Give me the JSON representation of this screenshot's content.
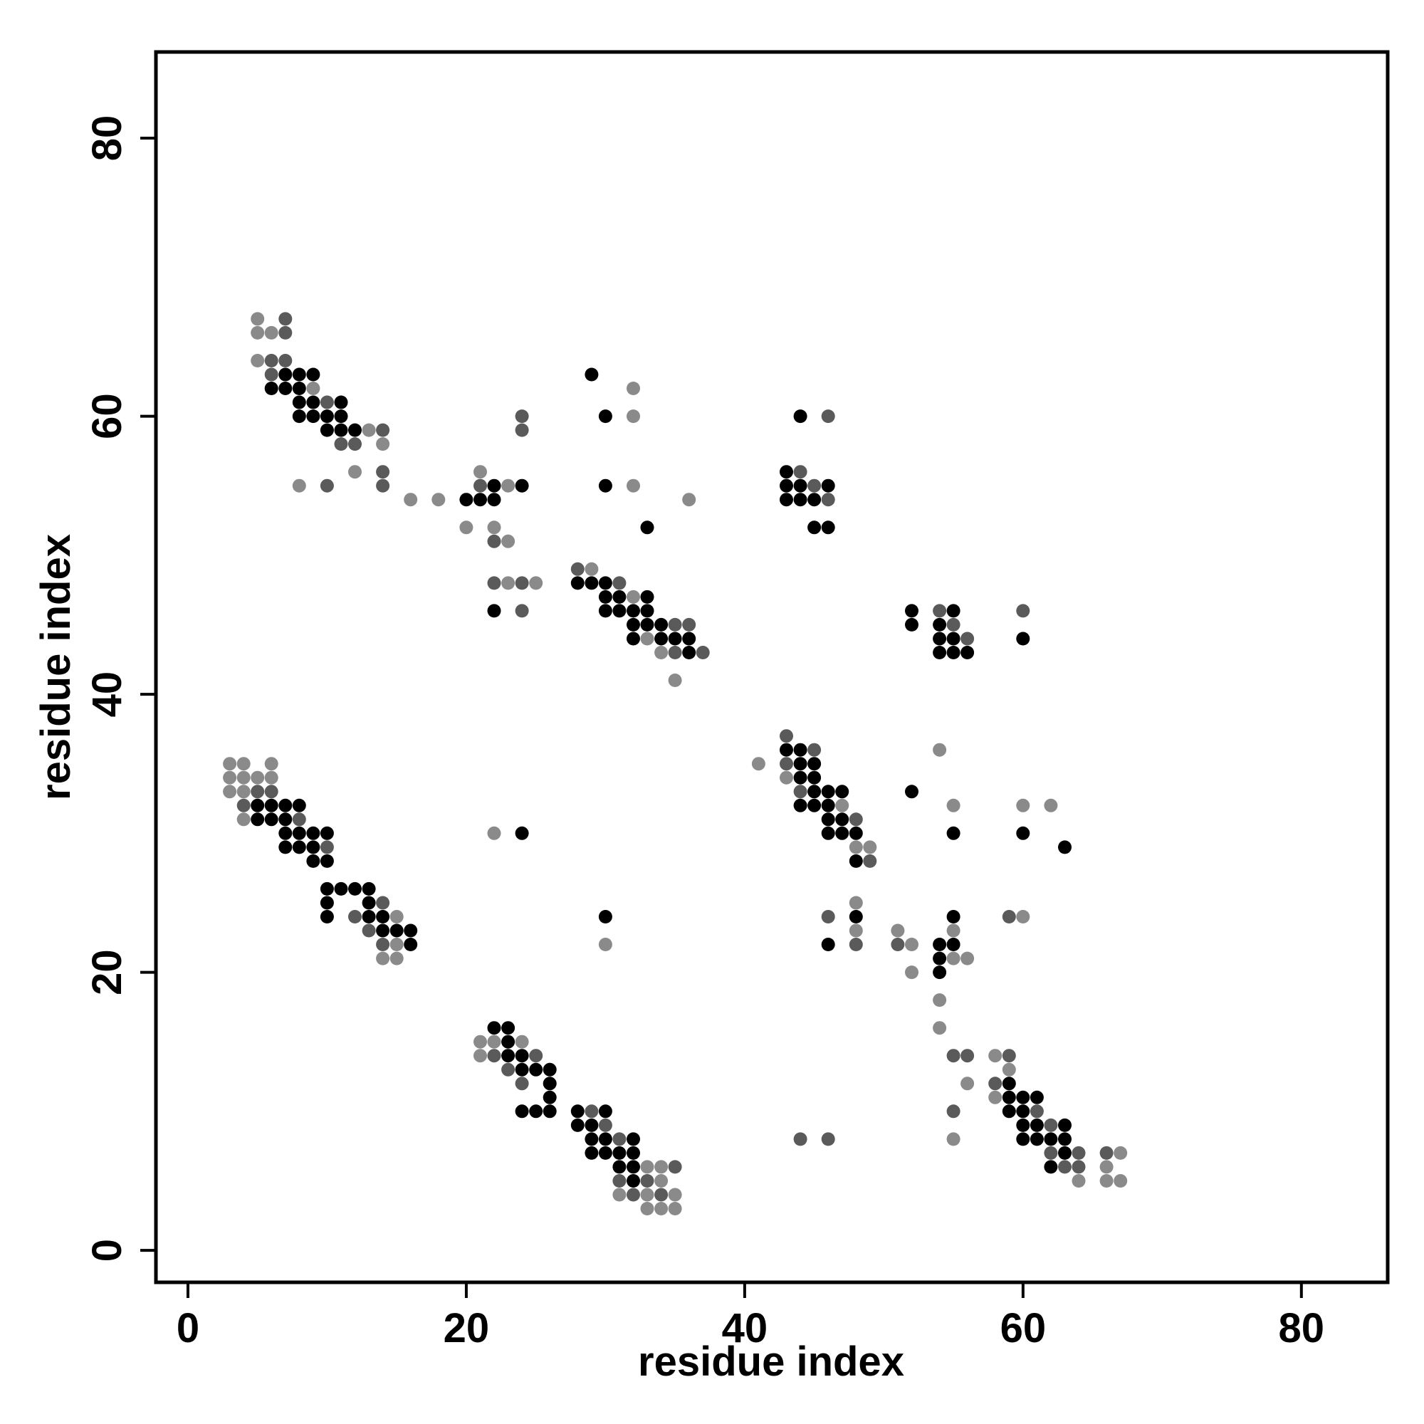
{
  "chart_data": {
    "type": "scatter",
    "title": "",
    "xlabel": "residue index",
    "ylabel": "residue index",
    "xlim": [
      -2.3,
      86.2
    ],
    "ylim": [
      -2.3,
      86.2
    ],
    "x_ticks": [
      0,
      20,
      40,
      60,
      80
    ],
    "y_ticks": [
      0,
      20,
      40,
      60,
      80
    ],
    "grid": false,
    "legend": "none",
    "colors": {
      "black": "#000000",
      "dark": "#3c3c3c",
      "mid": "#5a5a5a",
      "light": "#8a8a8a"
    },
    "points": [
      [
        5,
        67,
        "light"
      ],
      [
        7,
        67,
        "mid"
      ],
      [
        5,
        66,
        "light"
      ],
      [
        6,
        66,
        "light"
      ],
      [
        7,
        66,
        "mid"
      ],
      [
        5,
        64,
        "light"
      ],
      [
        6,
        64,
        "mid"
      ],
      [
        7,
        64,
        "mid"
      ],
      [
        6,
        63,
        "mid"
      ],
      [
        7,
        63,
        "black"
      ],
      [
        8,
        63,
        "black"
      ],
      [
        9,
        63,
        "black"
      ],
      [
        6,
        62,
        "black"
      ],
      [
        7,
        62,
        "black"
      ],
      [
        8,
        62,
        "black"
      ],
      [
        9,
        62,
        "light"
      ],
      [
        8,
        61,
        "black"
      ],
      [
        9,
        61,
        "black"
      ],
      [
        10,
        61,
        "mid"
      ],
      [
        11,
        61,
        "black"
      ],
      [
        8,
        60,
        "black"
      ],
      [
        9,
        60,
        "black"
      ],
      [
        10,
        60,
        "black"
      ],
      [
        11,
        60,
        "black"
      ],
      [
        10,
        59,
        "black"
      ],
      [
        11,
        59,
        "black"
      ],
      [
        12,
        59,
        "black"
      ],
      [
        13,
        59,
        "light"
      ],
      [
        14,
        59,
        "mid"
      ],
      [
        11,
        58,
        "mid"
      ],
      [
        12,
        58,
        "mid"
      ],
      [
        14,
        58,
        "light"
      ],
      [
        12,
        56,
        "light"
      ],
      [
        14,
        56,
        "mid"
      ],
      [
        8,
        55,
        "light"
      ],
      [
        10,
        55,
        "mid"
      ],
      [
        14,
        55,
        "mid"
      ],
      [
        16,
        54,
        "light"
      ],
      [
        18,
        54,
        "light"
      ],
      [
        24,
        60,
        "mid"
      ],
      [
        24,
        59,
        "mid"
      ],
      [
        21,
        56,
        "light"
      ],
      [
        21,
        55,
        "mid"
      ],
      [
        22,
        55,
        "black"
      ],
      [
        23,
        55,
        "light"
      ],
      [
        24,
        55,
        "black"
      ],
      [
        20,
        54,
        "black"
      ],
      [
        21,
        54,
        "black"
      ],
      [
        22,
        54,
        "black"
      ],
      [
        20,
        52,
        "light"
      ],
      [
        22,
        52,
        "light"
      ],
      [
        22,
        51,
        "mid"
      ],
      [
        23,
        51,
        "light"
      ],
      [
        22,
        48,
        "mid"
      ],
      [
        23,
        48,
        "light"
      ],
      [
        24,
        48,
        "mid"
      ],
      [
        25,
        48,
        "light"
      ],
      [
        22,
        46,
        "black"
      ],
      [
        24,
        46,
        "mid"
      ],
      [
        29,
        63,
        "black"
      ],
      [
        30,
        60,
        "black"
      ],
      [
        32,
        62,
        "light"
      ],
      [
        32,
        60,
        "light"
      ],
      [
        30,
        55,
        "black"
      ],
      [
        32,
        55,
        "light"
      ],
      [
        36,
        54,
        "light"
      ],
      [
        33,
        52,
        "black"
      ],
      [
        28,
        49,
        "mid"
      ],
      [
        29,
        49,
        "light"
      ],
      [
        28,
        48,
        "black"
      ],
      [
        29,
        48,
        "black"
      ],
      [
        30,
        48,
        "black"
      ],
      [
        31,
        48,
        "mid"
      ],
      [
        30,
        47,
        "black"
      ],
      [
        31,
        47,
        "black"
      ],
      [
        32,
        47,
        "light"
      ],
      [
        33,
        47,
        "black"
      ],
      [
        30,
        46,
        "black"
      ],
      [
        31,
        46,
        "black"
      ],
      [
        32,
        46,
        "black"
      ],
      [
        33,
        46,
        "black"
      ],
      [
        32,
        45,
        "black"
      ],
      [
        33,
        45,
        "black"
      ],
      [
        34,
        45,
        "black"
      ],
      [
        35,
        45,
        "mid"
      ],
      [
        36,
        45,
        "mid"
      ],
      [
        32,
        44,
        "black"
      ],
      [
        33,
        44,
        "light"
      ],
      [
        34,
        44,
        "black"
      ],
      [
        35,
        44,
        "black"
      ],
      [
        36,
        44,
        "black"
      ],
      [
        34,
        43,
        "light"
      ],
      [
        35,
        43,
        "mid"
      ],
      [
        36,
        43,
        "black"
      ],
      [
        37,
        43,
        "mid"
      ],
      [
        35,
        41,
        "light"
      ],
      [
        43,
        56,
        "black"
      ],
      [
        44,
        56,
        "mid"
      ],
      [
        43,
        55,
        "black"
      ],
      [
        44,
        55,
        "black"
      ],
      [
        45,
        55,
        "mid"
      ],
      [
        46,
        55,
        "black"
      ],
      [
        43,
        54,
        "black"
      ],
      [
        44,
        54,
        "black"
      ],
      [
        45,
        54,
        "black"
      ],
      [
        46,
        54,
        "mid"
      ],
      [
        45,
        52,
        "black"
      ],
      [
        46,
        52,
        "black"
      ],
      [
        44,
        60,
        "black"
      ],
      [
        46,
        60,
        "mid"
      ],
      [
        52,
        46,
        "black"
      ],
      [
        54,
        46,
        "mid"
      ],
      [
        55,
        46,
        "black"
      ],
      [
        52,
        45,
        "black"
      ],
      [
        54,
        45,
        "black"
      ],
      [
        55,
        45,
        "mid"
      ],
      [
        54,
        44,
        "black"
      ],
      [
        55,
        44,
        "black"
      ],
      [
        56,
        44,
        "mid"
      ],
      [
        54,
        43,
        "black"
      ],
      [
        55,
        43,
        "black"
      ],
      [
        56,
        43,
        "black"
      ],
      [
        60,
        46,
        "mid"
      ],
      [
        60,
        44,
        "black"
      ],
      [
        3,
        35,
        "light"
      ],
      [
        4,
        35,
        "light"
      ],
      [
        6,
        35,
        "light"
      ],
      [
        3,
        34,
        "light"
      ],
      [
        4,
        34,
        "light"
      ],
      [
        5,
        34,
        "light"
      ],
      [
        6,
        34,
        "light"
      ],
      [
        3,
        33,
        "light"
      ],
      [
        4,
        33,
        "light"
      ],
      [
        5,
        33,
        "mid"
      ],
      [
        6,
        33,
        "mid"
      ],
      [
        4,
        32,
        "mid"
      ],
      [
        5,
        32,
        "black"
      ],
      [
        6,
        32,
        "black"
      ],
      [
        7,
        32,
        "black"
      ],
      [
        8,
        32,
        "black"
      ],
      [
        4,
        31,
        "light"
      ],
      [
        5,
        31,
        "black"
      ],
      [
        6,
        31,
        "black"
      ],
      [
        7,
        31,
        "black"
      ],
      [
        8,
        31,
        "mid"
      ],
      [
        7,
        30,
        "black"
      ],
      [
        8,
        30,
        "black"
      ],
      [
        9,
        30,
        "black"
      ],
      [
        10,
        30,
        "black"
      ],
      [
        7,
        29,
        "black"
      ],
      [
        8,
        29,
        "black"
      ],
      [
        9,
        29,
        "black"
      ],
      [
        10,
        29,
        "mid"
      ],
      [
        9,
        28,
        "black"
      ],
      [
        10,
        28,
        "black"
      ],
      [
        10,
        26,
        "black"
      ],
      [
        11,
        26,
        "black"
      ],
      [
        12,
        26,
        "black"
      ],
      [
        13,
        26,
        "black"
      ],
      [
        10,
        25,
        "black"
      ],
      [
        13,
        25,
        "black"
      ],
      [
        14,
        25,
        "mid"
      ],
      [
        10,
        24,
        "black"
      ],
      [
        12,
        24,
        "mid"
      ],
      [
        13,
        24,
        "black"
      ],
      [
        14,
        24,
        "black"
      ],
      [
        15,
        24,
        "light"
      ],
      [
        13,
        23,
        "mid"
      ],
      [
        14,
        23,
        "black"
      ],
      [
        15,
        23,
        "black"
      ],
      [
        16,
        23,
        "black"
      ],
      [
        14,
        22,
        "mid"
      ],
      [
        15,
        22,
        "light"
      ],
      [
        16,
        22,
        "black"
      ],
      [
        14,
        21,
        "light"
      ],
      [
        15,
        21,
        "light"
      ],
      [
        22,
        30,
        "light"
      ],
      [
        24,
        30,
        "black"
      ],
      [
        30,
        24,
        "black"
      ],
      [
        30,
        22,
        "light"
      ],
      [
        41,
        35,
        "light"
      ],
      [
        43,
        37,
        "mid"
      ],
      [
        43,
        36,
        "black"
      ],
      [
        44,
        36,
        "black"
      ],
      [
        45,
        36,
        "mid"
      ],
      [
        43,
        35,
        "mid"
      ],
      [
        44,
        35,
        "black"
      ],
      [
        45,
        35,
        "black"
      ],
      [
        43,
        34,
        "light"
      ],
      [
        44,
        34,
        "black"
      ],
      [
        45,
        34,
        "black"
      ],
      [
        44,
        33,
        "mid"
      ],
      [
        45,
        33,
        "black"
      ],
      [
        46,
        33,
        "black"
      ],
      [
        47,
        33,
        "black"
      ],
      [
        44,
        32,
        "black"
      ],
      [
        45,
        32,
        "black"
      ],
      [
        46,
        32,
        "black"
      ],
      [
        47,
        32,
        "light"
      ],
      [
        46,
        31,
        "black"
      ],
      [
        47,
        31,
        "black"
      ],
      [
        48,
        31,
        "mid"
      ],
      [
        46,
        30,
        "black"
      ],
      [
        47,
        30,
        "black"
      ],
      [
        48,
        30,
        "black"
      ],
      [
        48,
        29,
        "light"
      ],
      [
        49,
        29,
        "light"
      ],
      [
        48,
        28,
        "black"
      ],
      [
        49,
        28,
        "mid"
      ],
      [
        54,
        36,
        "light"
      ],
      [
        52,
        33,
        "black"
      ],
      [
        55,
        32,
        "light"
      ],
      [
        60,
        32,
        "light"
      ],
      [
        62,
        32,
        "light"
      ],
      [
        55,
        30,
        "black"
      ],
      [
        60,
        30,
        "black"
      ],
      [
        63,
        29,
        "black"
      ],
      [
        46,
        24,
        "mid"
      ],
      [
        48,
        24,
        "black"
      ],
      [
        48,
        25,
        "light"
      ],
      [
        48,
        23,
        "light"
      ],
      [
        46,
        22,
        "black"
      ],
      [
        48,
        22,
        "mid"
      ],
      [
        51,
        23,
        "light"
      ],
      [
        51,
        22,
        "mid"
      ],
      [
        52,
        22,
        "light"
      ],
      [
        52,
        20,
        "light"
      ],
      [
        54,
        22,
        "black"
      ],
      [
        55,
        22,
        "black"
      ],
      [
        55,
        24,
        "black"
      ],
      [
        55,
        23,
        "light"
      ],
      [
        54,
        21,
        "black"
      ],
      [
        55,
        21,
        "light"
      ],
      [
        56,
        21,
        "light"
      ],
      [
        54,
        20,
        "black"
      ],
      [
        59,
        24,
        "mid"
      ],
      [
        60,
        24,
        "light"
      ],
      [
        54,
        18,
        "light"
      ],
      [
        54,
        16,
        "light"
      ],
      [
        22,
        16,
        "black"
      ],
      [
        23,
        16,
        "black"
      ],
      [
        21,
        15,
        "light"
      ],
      [
        22,
        15,
        "light"
      ],
      [
        23,
        15,
        "black"
      ],
      [
        24,
        15,
        "light"
      ],
      [
        21,
        14,
        "light"
      ],
      [
        22,
        14,
        "mid"
      ],
      [
        23,
        14,
        "black"
      ],
      [
        24,
        14,
        "black"
      ],
      [
        25,
        14,
        "mid"
      ],
      [
        23,
        13,
        "mid"
      ],
      [
        24,
        13,
        "black"
      ],
      [
        25,
        13,
        "black"
      ],
      [
        26,
        13,
        "black"
      ],
      [
        24,
        12,
        "mid"
      ],
      [
        26,
        12,
        "black"
      ],
      [
        26,
        11,
        "black"
      ],
      [
        24,
        10,
        "black"
      ],
      [
        25,
        10,
        "black"
      ],
      [
        26,
        10,
        "black"
      ],
      [
        28,
        10,
        "black"
      ],
      [
        29,
        10,
        "mid"
      ],
      [
        30,
        10,
        "black"
      ],
      [
        28,
        9,
        "black"
      ],
      [
        29,
        9,
        "black"
      ],
      [
        30,
        9,
        "mid"
      ],
      [
        29,
        8,
        "black"
      ],
      [
        30,
        8,
        "black"
      ],
      [
        31,
        8,
        "mid"
      ],
      [
        32,
        8,
        "black"
      ],
      [
        29,
        7,
        "black"
      ],
      [
        30,
        7,
        "black"
      ],
      [
        31,
        7,
        "black"
      ],
      [
        32,
        7,
        "black"
      ],
      [
        31,
        6,
        "black"
      ],
      [
        32,
        6,
        "black"
      ],
      [
        33,
        6,
        "light"
      ],
      [
        34,
        6,
        "light"
      ],
      [
        35,
        6,
        "mid"
      ],
      [
        31,
        5,
        "mid"
      ],
      [
        32,
        5,
        "black"
      ],
      [
        33,
        5,
        "mid"
      ],
      [
        34,
        5,
        "light"
      ],
      [
        31,
        4,
        "light"
      ],
      [
        32,
        4,
        "mid"
      ],
      [
        33,
        4,
        "light"
      ],
      [
        34,
        4,
        "mid"
      ],
      [
        35,
        4,
        "light"
      ],
      [
        33,
        3,
        "light"
      ],
      [
        34,
        3,
        "light"
      ],
      [
        35,
        3,
        "light"
      ],
      [
        44,
        8,
        "mid"
      ],
      [
        46,
        8,
        "mid"
      ],
      [
        55,
        14,
        "mid"
      ],
      [
        56,
        14,
        "mid"
      ],
      [
        56,
        12,
        "light"
      ],
      [
        55,
        10,
        "mid"
      ],
      [
        55,
        8,
        "light"
      ],
      [
        58,
        14,
        "light"
      ],
      [
        59,
        14,
        "mid"
      ],
      [
        58,
        12,
        "mid"
      ],
      [
        59,
        12,
        "black"
      ],
      [
        59,
        13,
        "light"
      ],
      [
        58,
        11,
        "light"
      ],
      [
        59,
        11,
        "black"
      ],
      [
        60,
        11,
        "black"
      ],
      [
        61,
        11,
        "black"
      ],
      [
        59,
        10,
        "black"
      ],
      [
        60,
        10,
        "black"
      ],
      [
        61,
        10,
        "mid"
      ],
      [
        60,
        9,
        "black"
      ],
      [
        61,
        9,
        "black"
      ],
      [
        62,
        9,
        "mid"
      ],
      [
        63,
        9,
        "black"
      ],
      [
        60,
        8,
        "black"
      ],
      [
        61,
        8,
        "black"
      ],
      [
        62,
        8,
        "black"
      ],
      [
        63,
        8,
        "black"
      ],
      [
        62,
        7,
        "mid"
      ],
      [
        63,
        7,
        "black"
      ],
      [
        64,
        7,
        "mid"
      ],
      [
        62,
        6,
        "black"
      ],
      [
        63,
        6,
        "mid"
      ],
      [
        64,
        6,
        "mid"
      ],
      [
        64,
        5,
        "light"
      ],
      [
        66,
        7,
        "mid"
      ],
      [
        67,
        7,
        "light"
      ],
      [
        66,
        6,
        "light"
      ],
      [
        66,
        5,
        "light"
      ],
      [
        67,
        5,
        "light"
      ]
    ]
  }
}
